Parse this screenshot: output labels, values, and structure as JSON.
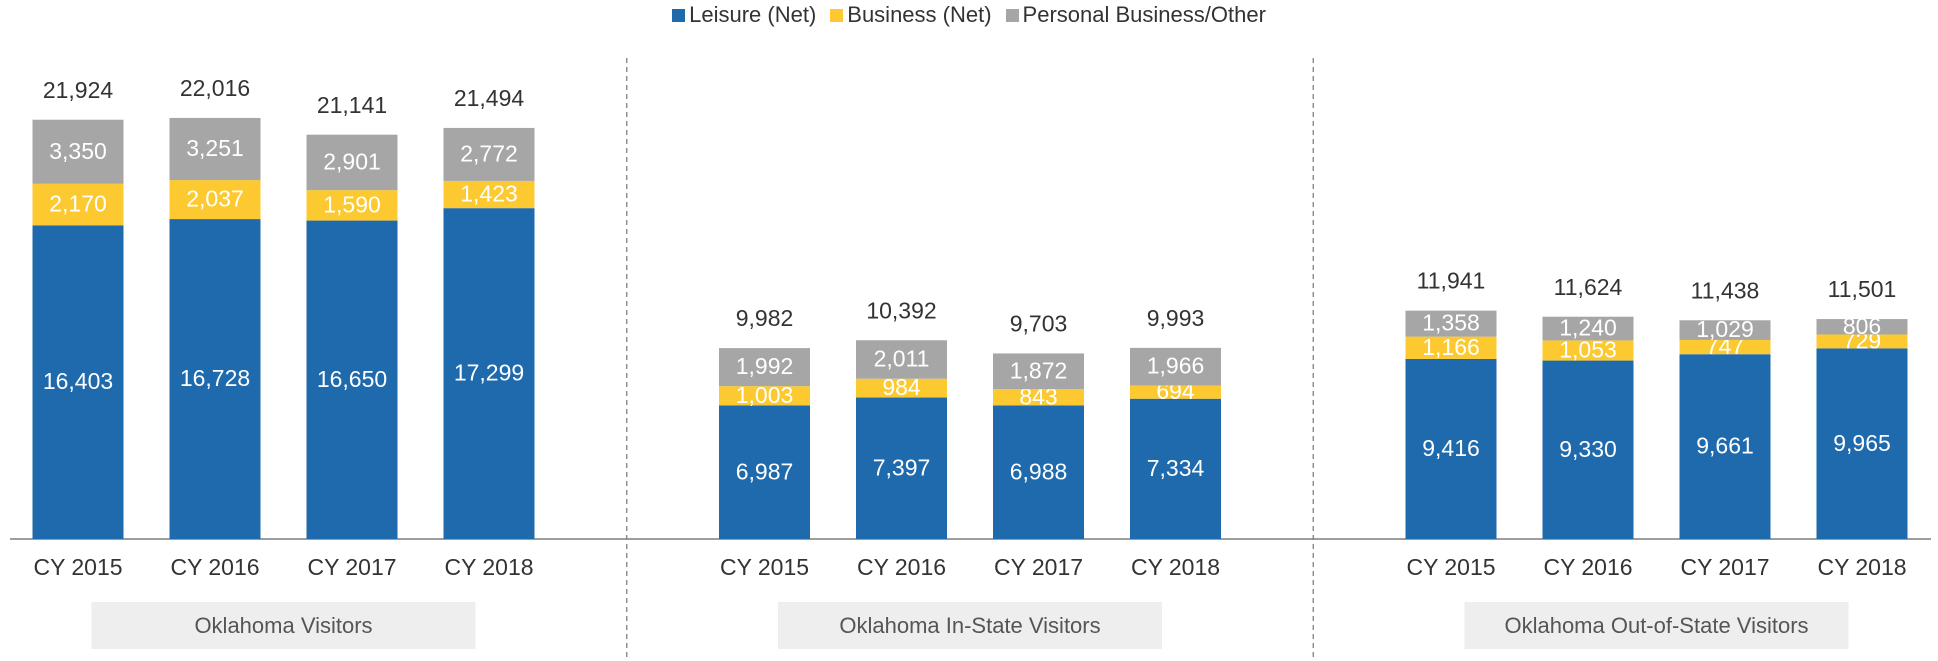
{
  "chart_data": {
    "type": "bar",
    "stacked": true,
    "categories": [
      "CY 2015",
      "CY 2016",
      "CY 2017",
      "CY 2018",
      "CY 2015",
      "CY 2016",
      "CY 2017",
      "CY 2018",
      "CY 2015",
      "CY 2016",
      "CY 2017",
      "CY 2018"
    ],
    "groups": [
      {
        "label": "Oklahoma Visitors",
        "size": 4
      },
      {
        "label": "Oklahoma In-State Visitors",
        "size": 4
      },
      {
        "label": "Oklahoma Out-of-State Visitors",
        "size": 4
      }
    ],
    "series": [
      {
        "name": "Leisure (Net)",
        "color": "#1f6aad",
        "label_color": "#ffffff",
        "values": [
          16403,
          16728,
          16650,
          17299,
          6987,
          7397,
          6988,
          7334,
          9416,
          9330,
          9661,
          9965
        ],
        "value_labels": [
          "16,403",
          "16,728",
          "16,650",
          "17,299",
          "6,987",
          "7,397",
          "6,988",
          "7,334",
          "9,416",
          "9,330",
          "9,661",
          "9,965"
        ]
      },
      {
        "name": "Business (Net)",
        "color": "#fcca30",
        "label_color": "#ffffff",
        "values": [
          2170,
          2037,
          1590,
          1423,
          1003,
          984,
          843,
          694,
          1166,
          1053,
          747,
          729
        ],
        "value_labels": [
          "2,170",
          "2,037",
          "1,590",
          "1,423",
          "1,003",
          "984",
          "843",
          "694",
          "1,166",
          "1,053",
          "747",
          "729"
        ]
      },
      {
        "name": "Personal Business/Other",
        "color": "#a6a6a6",
        "label_color": "#ffffff",
        "values": [
          3350,
          3251,
          2901,
          2772,
          1992,
          2011,
          1872,
          1966,
          1358,
          1240,
          1029,
          806
        ],
        "value_labels": [
          "3,350",
          "3,251",
          "2,901",
          "2,772",
          "1,992",
          "2,011",
          "1,872",
          "1,966",
          "1,358",
          "1,240",
          "1,029",
          "806"
        ]
      }
    ],
    "totals": [
      21924,
      22016,
      21141,
      21494,
      9982,
      10392,
      9703,
      9993,
      11941,
      11624,
      11438,
      11501
    ],
    "total_labels": [
      "21,924",
      "22,016",
      "21,141",
      "21,494",
      "9,982",
      "10,392",
      "9,703",
      "9,993",
      "11,941",
      "11,624",
      "11,438",
      "11,501"
    ],
    "ylim": [
      0,
      24000
    ],
    "legend": "top"
  }
}
